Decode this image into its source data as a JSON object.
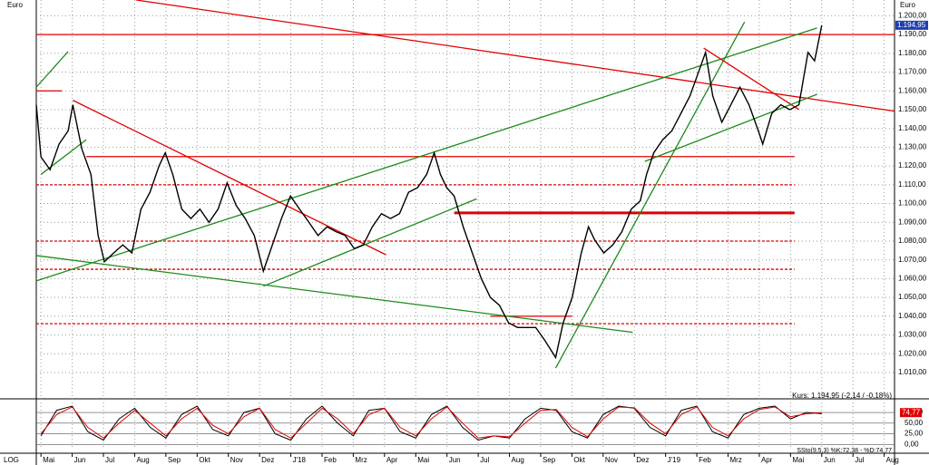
{
  "chart_data": {
    "type": "line",
    "y_unit_left": "Euro",
    "y_unit_right": "Euro",
    "scale_label": "LOG",
    "quote_text": "Kurs: 1.194,95 (-2,14 / -0,18%)",
    "last_price": {
      "value": 1.19495,
      "label": "1.194,95"
    },
    "xlim": [
      -0.15,
      27.33
    ],
    "xticks": [
      {
        "value": 0,
        "label": "Mai"
      },
      {
        "value": 1,
        "label": "Jun"
      },
      {
        "value": 2,
        "label": "Jul"
      },
      {
        "value": 3,
        "label": "Aug"
      },
      {
        "value": 4,
        "label": "Sep"
      },
      {
        "value": 5,
        "label": "Okt"
      },
      {
        "value": 6,
        "label": "Nov"
      },
      {
        "value": 7,
        "label": "Dez"
      },
      {
        "value": 8,
        "label": "J'18"
      },
      {
        "value": 9,
        "label": "Feb"
      },
      {
        "value": 10,
        "label": "Mrz"
      },
      {
        "value": 11,
        "label": "Apr"
      },
      {
        "value": 12,
        "label": "Mai"
      },
      {
        "value": 13,
        "label": "Jun"
      },
      {
        "value": 14,
        "label": "Jul"
      },
      {
        "value": 15,
        "label": "Aug"
      },
      {
        "value": 16,
        "label": "Sep"
      },
      {
        "value": 17,
        "label": "Okt"
      },
      {
        "value": 18,
        "label": "Nov"
      },
      {
        "value": 19,
        "label": "Dez"
      },
      {
        "value": 20,
        "label": "J'19"
      },
      {
        "value": 21,
        "label": "Feb"
      },
      {
        "value": 22,
        "label": "Mrz"
      },
      {
        "value": 23,
        "label": "Apr"
      },
      {
        "value": 24,
        "label": "Mai"
      },
      {
        "value": 25,
        "label": "Jun"
      },
      {
        "value": 26,
        "label": "Jul"
      },
      {
        "value": 27,
        "label": "Aug"
      }
    ],
    "ylim": [
      0.996,
      1.2084
    ],
    "yticks": [
      {
        "value": 1.01,
        "label": "1.010,00"
      },
      {
        "value": 1.02,
        "label": "1.020,00"
      },
      {
        "value": 1.03,
        "label": "1.030,00"
      },
      {
        "value": 1.04,
        "label": "1.040,00"
      },
      {
        "value": 1.05,
        "label": "1.050,00"
      },
      {
        "value": 1.06,
        "label": "1.060,00"
      },
      {
        "value": 1.07,
        "label": "1.070,00"
      },
      {
        "value": 1.08,
        "label": "1.080,00"
      },
      {
        "value": 1.09,
        "label": "1.090,00"
      },
      {
        "value": 1.1,
        "label": "1.100,00"
      },
      {
        "value": 1.11,
        "label": "1.110,00"
      },
      {
        "value": 1.12,
        "label": "1.120,00"
      },
      {
        "value": 1.13,
        "label": "1.130,00"
      },
      {
        "value": 1.14,
        "label": "1.140,00"
      },
      {
        "value": 1.15,
        "label": "1.150,00"
      },
      {
        "value": 1.16,
        "label": "1.160,00"
      },
      {
        "value": 1.17,
        "label": "1.170,00"
      },
      {
        "value": 1.18,
        "label": "1.180,00"
      },
      {
        "value": 1.19,
        "label": "1.190,00"
      },
      {
        "value": 1.2,
        "label": "1.200,00"
      }
    ],
    "grid": true,
    "x": [
      -0.15,
      0,
      0.29,
      0.58,
      0.87,
      1.02,
      1.31,
      1.6,
      1.83,
      2.03,
      2.33,
      2.62,
      2.91,
      3.2,
      3.49,
      3.78,
      3.98,
      4.22,
      4.51,
      4.8,
      5.09,
      5.38,
      5.67,
      5.96,
      6.25,
      6.54,
      6.83,
      7.12,
      7.41,
      7.7,
      7.99,
      8.28,
      8.58,
      8.87,
      9.16,
      9.45,
      9.74,
      10.03,
      10.32,
      10.61,
      10.9,
      11.19,
      11.48,
      11.77,
      12.06,
      12.35,
      12.59,
      12.79,
      12.99,
      13.23,
      13.52,
      13.81,
      14.1,
      14.39,
      14.68,
      14.97,
      15.26,
      15.55,
      15.84,
      16.13,
      16.48,
      16.72,
      17.01,
      17.3,
      17.53,
      17.73,
      18.02,
      18.31,
      18.6,
      18.9,
      19.19,
      19.39,
      19.62,
      19.91,
      20.2,
      20.49,
      20.78,
      21.08,
      21.28,
      21.51,
      21.8,
      22.09,
      22.38,
      22.67,
      22.97,
      23.11,
      23.4,
      23.69,
      23.98,
      24.27,
      24.56,
      24.77,
      25.0
    ],
    "series": [
      {
        "color": "#000000",
        "values": [
          1.1526,
          1.1248,
          1.118,
          1.1317,
          1.1387,
          1.1526,
          1.129,
          1.1155,
          1.083,
          1.069,
          1.0737,
          1.078,
          1.0737,
          1.0969,
          1.106,
          1.12,
          1.127,
          1.1155,
          1.097,
          1.092,
          1.097,
          1.09,
          1.097,
          1.111,
          1.099,
          1.092,
          1.083,
          1.064,
          1.078,
          1.092,
          1.104,
          1.097,
          1.09,
          1.083,
          1.0876,
          1.085,
          1.083,
          1.076,
          1.078,
          1.0876,
          1.0946,
          1.092,
          1.0946,
          1.106,
          1.1085,
          1.1155,
          1.127,
          1.1155,
          1.1085,
          1.104,
          1.0876,
          1.0737,
          1.06,
          1.05,
          1.0458,
          1.0365,
          1.034,
          1.034,
          1.034,
          1.0272,
          1.018,
          1.0365,
          1.05,
          1.0737,
          1.0876,
          1.0806,
          1.0737,
          1.078,
          1.085,
          1.097,
          1.1015,
          1.1155,
          1.127,
          1.134,
          1.1387,
          1.148,
          1.1573,
          1.1712,
          1.1805,
          1.1573,
          1.1433,
          1.1526,
          1.162,
          1.1526,
          1.1387,
          1.1317,
          1.148,
          1.1526,
          1.15,
          1.1526,
          1.1805,
          1.176,
          1.19495
        ]
      }
    ],
    "levels": [
      {
        "value": 1.19,
        "from": -0.15,
        "to": 27.33,
        "color": "#e00000",
        "style": "solid"
      },
      {
        "value": 1.16,
        "from": -0.15,
        "to": 0.67,
        "color": "#e00000",
        "style": "solid"
      },
      {
        "value": 1.125,
        "from": 1.45,
        "to": 24.13,
        "color": "#e00000",
        "style": "solid"
      },
      {
        "value": 1.11,
        "from": -0.15,
        "to": 24.13,
        "color": "#e00000",
        "style": "dashed"
      },
      {
        "value": 1.095,
        "from": 13.23,
        "to": 24.13,
        "color": "#e00000",
        "style": "thick"
      },
      {
        "value": 1.08,
        "from": -0.15,
        "to": 24.13,
        "color": "#e00000",
        "style": "dashed"
      },
      {
        "value": 1.065,
        "from": -0.15,
        "to": 24.13,
        "color": "#e00000",
        "style": "dashed"
      },
      {
        "value": 1.04,
        "from": 14.39,
        "to": 17.01,
        "color": "#e00000",
        "style": "solid"
      },
      {
        "value": 1.036,
        "from": -0.15,
        "to": 24.13,
        "color": "#e00000",
        "style": "dashed"
      }
    ],
    "trend_lines": [
      {
        "x": [
          3.05,
          27.33
        ],
        "y": [
          1.2084,
          1.1492
        ],
        "color": "#e00000"
      },
      {
        "x": [
          -0.15,
          24.85
        ],
        "y": [
          1.0588,
          1.1935
        ],
        "color": "#1a8c1a"
      },
      {
        "x": [
          -0.15,
          18.95
        ],
        "y": [
          1.0723,
          1.0314
        ],
        "color": "#1a8c1a"
      },
      {
        "x": [
          1.02,
          11.05
        ],
        "y": [
          1.155,
          1.0727
        ],
        "color": "#e00000"
      },
      {
        "x": [
          7.12,
          13.95
        ],
        "y": [
          1.056,
          1.1025
        ],
        "color": "#1a8c1a"
      },
      {
        "x": [
          16.48,
          22.53
        ],
        "y": [
          1.0124,
          1.1967
        ],
        "color": "#1a8c1a"
      },
      {
        "x": [
          0,
          1.45
        ],
        "y": [
          1.1155,
          1.134
        ],
        "color": "#1a8c1a"
      },
      {
        "x": [
          -0.15,
          0.87
        ],
        "y": [
          1.162,
          1.181
        ],
        "color": "#1a8c1a"
      },
      {
        "x": [
          21.22,
          24.27
        ],
        "y": [
          1.1828,
          1.15
        ],
        "color": "#e00000"
      },
      {
        "x": [
          19.33,
          24.85
        ],
        "y": [
          1.1224,
          1.1582
        ],
        "color": "#1a8c1a"
      }
    ],
    "stochastic": {
      "text": "SSto(9,5,3) %K:72,38 - %D:74,77",
      "last": {
        "value": 74.77,
        "label": "74,77"
      },
      "ylim": [
        -10,
        105
      ],
      "yticks": [
        {
          "value": 0,
          "label": "0,00"
        },
        {
          "value": 25,
          "label": "25,00"
        },
        {
          "value": 50,
          "label": "50,00"
        },
        {
          "value": 75,
          "label": "75,00"
        }
      ],
      "x": [
        0,
        0.5,
        1,
        1.5,
        2,
        2.5,
        3,
        3.5,
        4,
        4.5,
        5,
        5.5,
        6,
        6.5,
        7,
        7.5,
        8,
        8.5,
        9,
        9.5,
        10,
        10.5,
        11,
        11.5,
        12,
        12.5,
        13,
        13.5,
        14,
        14.5,
        15,
        15.5,
        16,
        16.5,
        17,
        17.5,
        18,
        18.5,
        19,
        19.5,
        20,
        20.5,
        21,
        21.5,
        22,
        22.5,
        23,
        23.5,
        24,
        24.5,
        25
      ],
      "series": [
        {
          "color": "#000000",
          "values": [
            20,
            80,
            90,
            30,
            10,
            60,
            85,
            40,
            15,
            70,
            90,
            35,
            20,
            75,
            85,
            25,
            10,
            60,
            90,
            50,
            20,
            80,
            85,
            30,
            15,
            70,
            90,
            40,
            10,
            20,
            15,
            60,
            85,
            80,
            30,
            15,
            70,
            90,
            85,
            40,
            20,
            80,
            90,
            30,
            15,
            70,
            85,
            90,
            60,
            75,
            72.38
          ]
        },
        {
          "color": "#e00000",
          "values": [
            25,
            70,
            88,
            40,
            15,
            50,
            80,
            50,
            20,
            60,
            85,
            45,
            25,
            65,
            85,
            35,
            15,
            50,
            85,
            60,
            25,
            70,
            85,
            40,
            20,
            60,
            88,
            50,
            15,
            20,
            18,
            50,
            80,
            82,
            40,
            18,
            60,
            88,
            86,
            50,
            25,
            70,
            88,
            40,
            20,
            60,
            82,
            88,
            65,
            72,
            74.77
          ]
        }
      ]
    }
  }
}
